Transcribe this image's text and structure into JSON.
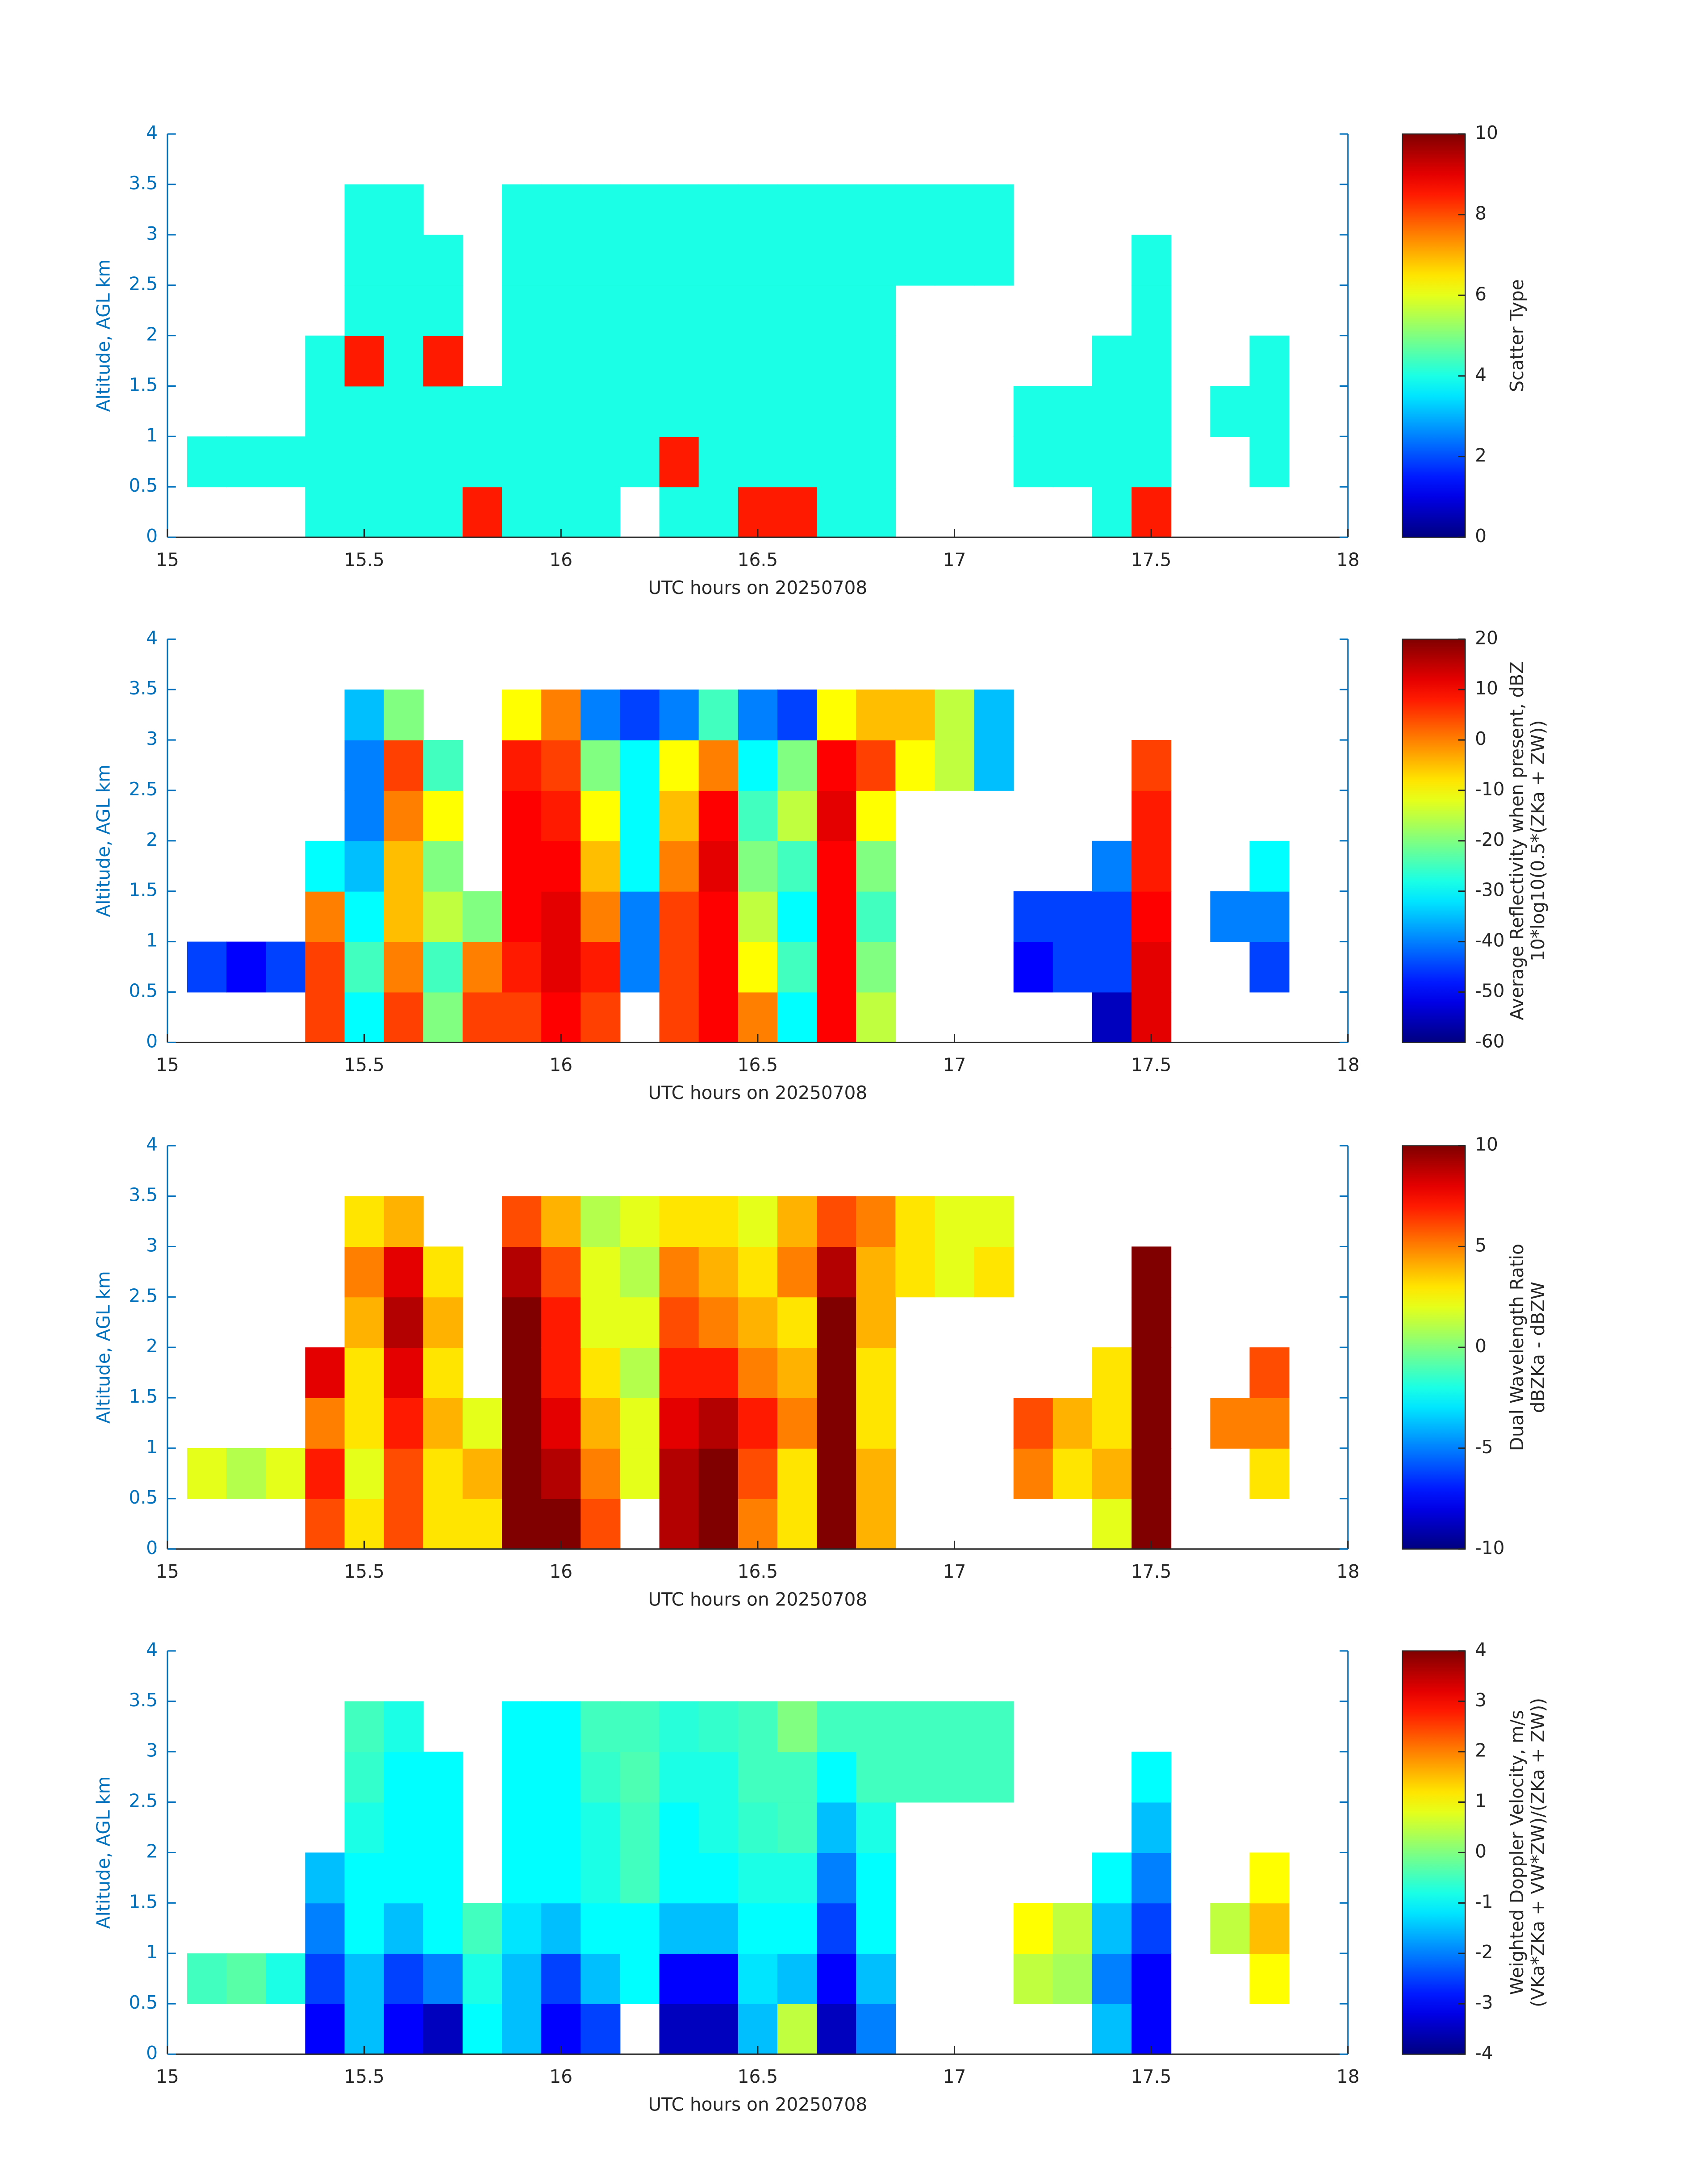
{
  "chart_data": [
    {
      "type": "heatmap",
      "colormap": "jet",
      "xlabel": "UTC hours on 20250708",
      "ylabel": "Altitude, AGL km",
      "colorbar_label": [
        "Scatter Type"
      ],
      "xlim": [
        15,
        18
      ],
      "ylim": [
        0,
        4
      ],
      "xticks": [
        15,
        15.5,
        16,
        16.5,
        17,
        17.5,
        18
      ],
      "yticks": [
        0,
        0.5,
        1,
        1.5,
        2,
        2.5,
        3,
        3.5,
        4
      ],
      "clim": [
        0,
        10
      ],
      "cticks": [
        0,
        2,
        4,
        6,
        8,
        10
      ],
      "x": [
        15.1,
        15.2,
        15.3,
        15.4,
        15.5,
        15.6,
        15.7,
        15.8,
        15.9,
        16.0,
        16.1,
        16.2,
        16.3,
        16.4,
        16.5,
        16.6,
        16.7,
        16.8,
        16.9,
        17.0,
        17.1,
        17.2,
        17.3,
        17.4,
        17.5,
        17.6,
        17.7,
        17.8,
        17.9
      ],
      "y": [
        0.25,
        0.75,
        1.25,
        1.75,
        2.25,
        2.75,
        3.25
      ],
      "z": [
        [
          null,
          4,
          null,
          null,
          null,
          null,
          null
        ],
        [
          null,
          4,
          null,
          null,
          null,
          null,
          null
        ],
        [
          null,
          4,
          null,
          null,
          null,
          null,
          null
        ],
        [
          4,
          4,
          4,
          4,
          null,
          null,
          null
        ],
        [
          4,
          4,
          4,
          8.5,
          4,
          4,
          4
        ],
        [
          4,
          4,
          4,
          4,
          4,
          4,
          4
        ],
        [
          4,
          4,
          4,
          8.5,
          4,
          4,
          null
        ],
        [
          8.5,
          4,
          4,
          null,
          null,
          null,
          null
        ],
        [
          4,
          4,
          4,
          4,
          4,
          4,
          4
        ],
        [
          4,
          4,
          4,
          4,
          4,
          4,
          4
        ],
        [
          4,
          4,
          4,
          4,
          4,
          4,
          4
        ],
        [
          null,
          4,
          4,
          4,
          4,
          4,
          4
        ],
        [
          4,
          8.5,
          4,
          4,
          4,
          4,
          4
        ],
        [
          4,
          4,
          4,
          4,
          4,
          4,
          4
        ],
        [
          8.5,
          4,
          4,
          4,
          4,
          4,
          4
        ],
        [
          8.5,
          4,
          4,
          4,
          4,
          4,
          4
        ],
        [
          4,
          4,
          4,
          4,
          4,
          4,
          4
        ],
        [
          4,
          4,
          4,
          4,
          4,
          4,
          4
        ],
        [
          null,
          null,
          null,
          null,
          null,
          4,
          4
        ],
        [
          null,
          null,
          null,
          null,
          null,
          4,
          4
        ],
        [
          null,
          null,
          null,
          null,
          null,
          4,
          4
        ],
        [
          null,
          4,
          4,
          null,
          null,
          null,
          null
        ],
        [
          null,
          4,
          4,
          null,
          null,
          null,
          null
        ],
        [
          4,
          4,
          4,
          4,
          null,
          null,
          null
        ],
        [
          8.5,
          4,
          4,
          4,
          4,
          4,
          null
        ],
        [
          null,
          null,
          null,
          null,
          null,
          null,
          null
        ],
        [
          null,
          null,
          4,
          null,
          null,
          null,
          null
        ],
        [
          null,
          4,
          4,
          4,
          null,
          null,
          null
        ],
        [
          null,
          null,
          null,
          null,
          null,
          null,
          null
        ]
      ]
    },
    {
      "type": "heatmap",
      "colormap": "jet",
      "xlabel": "UTC hours on 20250708",
      "ylabel": "Altitude, AGL km",
      "colorbar_label": [
        "Average Reflectivity when present, dBZ",
        "10*log10(0.5*(ZKa + ZW))"
      ],
      "xlim": [
        15,
        18
      ],
      "ylim": [
        0,
        4
      ],
      "xticks": [
        15,
        15.5,
        16,
        16.5,
        17,
        17.5,
        18
      ],
      "yticks": [
        0,
        0.5,
        1,
        1.5,
        2,
        2.5,
        3,
        3.5,
        4
      ],
      "clim": [
        -60,
        20
      ],
      "cticks": [
        -60,
        -50,
        -40,
        -30,
        -20,
        -10,
        0,
        10,
        20
      ],
      "x": [
        15.1,
        15.2,
        15.3,
        15.4,
        15.5,
        15.6,
        15.7,
        15.8,
        15.9,
        16.0,
        16.1,
        16.2,
        16.3,
        16.4,
        16.5,
        16.6,
        16.7,
        16.8,
        16.9,
        17.0,
        17.1,
        17.2,
        17.3,
        17.4,
        17.5,
        17.6,
        17.7,
        17.8,
        17.9
      ],
      "y": [
        0.25,
        0.75,
        1.25,
        1.75,
        2.25,
        2.75,
        3.25
      ],
      "z": [
        [
          null,
          -45,
          null,
          null,
          null,
          null,
          null
        ],
        [
          null,
          -50,
          null,
          null,
          null,
          null,
          null
        ],
        [
          null,
          -45,
          null,
          null,
          null,
          null,
          null
        ],
        [
          5,
          5,
          0,
          -30,
          null,
          null,
          null
        ],
        [
          -30,
          -25,
          -30,
          -35,
          -40,
          -40,
          -35
        ],
        [
          5,
          0,
          -5,
          -5,
          0,
          5,
          -20
        ],
        [
          -20,
          -25,
          -15,
          -20,
          -10,
          -25,
          null
        ],
        [
          5,
          0,
          -20,
          null,
          null,
          null,
          null
        ],
        [
          5,
          8,
          10,
          10,
          10,
          8,
          -10
        ],
        [
          10,
          12,
          12,
          10,
          8,
          5,
          0
        ],
        [
          5,
          8,
          0,
          -5,
          -10,
          -20,
          -40
        ],
        [
          null,
          -40,
          -40,
          -30,
          -30,
          -30,
          -45
        ],
        [
          5,
          5,
          5,
          0,
          -5,
          -10,
          -40
        ],
        [
          10,
          10,
          10,
          12,
          10,
          0,
          -25
        ],
        [
          0,
          -10,
          -15,
          -20,
          -25,
          -30,
          -40
        ],
        [
          -30,
          -25,
          -30,
          -25,
          -15,
          -20,
          -45
        ],
        [
          10,
          10,
          10,
          10,
          12,
          10,
          -10
        ],
        [
          -15,
          -20,
          -25,
          -20,
          -10,
          5,
          -5
        ],
        [
          null,
          null,
          null,
          null,
          null,
          -10,
          -5
        ],
        [
          null,
          null,
          null,
          null,
          null,
          -15,
          -15
        ],
        [
          null,
          null,
          null,
          null,
          null,
          -35,
          -35
        ],
        [
          null,
          -50,
          -45,
          null,
          null,
          null,
          null
        ],
        [
          null,
          -45,
          -45,
          null,
          null,
          null,
          null
        ],
        [
          -55,
          -45,
          -45,
          -40,
          null,
          null,
          null
        ],
        [
          12,
          12,
          10,
          8,
          8,
          5,
          null
        ],
        [
          null,
          null,
          null,
          null,
          null,
          null,
          null
        ],
        [
          null,
          null,
          -40,
          null,
          null,
          null,
          null
        ],
        [
          null,
          -45,
          -40,
          -30,
          null,
          null,
          null
        ],
        [
          null,
          null,
          null,
          null,
          null,
          null,
          null
        ]
      ]
    },
    {
      "type": "heatmap",
      "colormap": "jet",
      "xlabel": "UTC hours on 20250708",
      "ylabel": "Altitude, AGL km",
      "colorbar_label": [
        "Dual Wavelength Ratio",
        "dBZKa - dBZW"
      ],
      "xlim": [
        15,
        18
      ],
      "ylim": [
        0,
        4
      ],
      "xticks": [
        15,
        15.5,
        16,
        16.5,
        17,
        17.5,
        18
      ],
      "yticks": [
        0,
        0.5,
        1,
        1.5,
        2,
        2.5,
        3,
        3.5,
        4
      ],
      "clim": [
        -10,
        10
      ],
      "cticks": [
        -10,
        -5,
        0,
        5,
        10
      ],
      "x": [
        15.1,
        15.2,
        15.3,
        15.4,
        15.5,
        15.6,
        15.7,
        15.8,
        15.9,
        16.0,
        16.1,
        16.2,
        16.3,
        16.4,
        16.5,
        16.6,
        16.7,
        16.8,
        16.9,
        17.0,
        17.1,
        17.2,
        17.3,
        17.4,
        17.5,
        17.6,
        17.7,
        17.8,
        17.9
      ],
      "y": [
        0.25,
        0.75,
        1.25,
        1.75,
        2.25,
        2.75,
        3.25
      ],
      "z": [
        [
          null,
          2,
          null,
          null,
          null,
          null,
          null
        ],
        [
          null,
          1,
          null,
          null,
          null,
          null,
          null
        ],
        [
          null,
          2,
          null,
          null,
          null,
          null,
          null
        ],
        [
          6,
          7,
          5,
          8,
          null,
          null,
          null
        ],
        [
          3,
          2,
          3,
          3,
          4,
          5,
          3
        ],
        [
          6,
          6,
          7,
          8,
          9,
          8,
          4
        ],
        [
          3,
          3,
          4,
          3,
          4,
          3,
          null
        ],
        [
          3,
          4,
          2,
          null,
          null,
          null,
          null
        ],
        [
          10,
          10,
          10,
          10,
          10,
          9,
          6
        ],
        [
          10,
          9,
          8,
          7,
          7,
          6,
          4
        ],
        [
          6,
          5,
          4,
          3,
          2,
          2,
          1
        ],
        [
          null,
          2,
          2,
          1,
          2,
          1,
          2
        ],
        [
          9,
          9,
          8,
          7,
          6,
          5,
          3
        ],
        [
          10,
          10,
          9,
          7,
          5,
          4,
          3
        ],
        [
          5,
          6,
          7,
          5,
          4,
          3,
          2
        ],
        [
          3,
          3,
          5,
          4,
          3,
          5,
          4
        ],
        [
          10,
          10,
          10,
          10,
          10,
          9,
          6
        ],
        [
          4,
          4,
          3,
          3,
          4,
          4,
          5
        ],
        [
          null,
          null,
          null,
          null,
          null,
          3,
          3
        ],
        [
          null,
          null,
          null,
          null,
          null,
          2,
          2
        ],
        [
          null,
          null,
          null,
          null,
          null,
          3,
          2
        ],
        [
          null,
          5,
          6,
          null,
          null,
          null,
          null
        ],
        [
          null,
          3,
          4,
          null,
          null,
          null,
          null
        ],
        [
          2,
          4,
          3,
          3,
          null,
          null,
          null
        ],
        [
          10,
          10,
          10,
          10,
          10,
          10,
          null
        ],
        [
          null,
          null,
          null,
          null,
          null,
          null,
          null
        ],
        [
          null,
          null,
          5,
          null,
          null,
          null,
          null
        ],
        [
          null,
          3,
          5,
          6,
          null,
          null,
          null
        ],
        [
          null,
          null,
          null,
          null,
          null,
          null,
          null
        ]
      ]
    },
    {
      "type": "heatmap",
      "colormap": "jet",
      "xlabel": "UTC hours on 20250708",
      "ylabel": "Altitude, AGL km",
      "colorbar_label": [
        "Weighted Doppler Velocity, m/s",
        "(VKa*ZKa + VW*ZW)/(ZKa + ZW))"
      ],
      "xlim": [
        15,
        18
      ],
      "ylim": [
        0,
        4
      ],
      "xticks": [
        15,
        15.5,
        16,
        16.5,
        17,
        17.5,
        18
      ],
      "yticks": [
        0,
        0.5,
        1,
        1.5,
        2,
        2.5,
        3,
        3.5,
        4
      ],
      "clim": [
        -4,
        4
      ],
      "cticks": [
        -4,
        -3,
        -2,
        -1,
        0,
        1,
        2,
        3,
        4
      ],
      "x": [
        15.1,
        15.2,
        15.3,
        15.4,
        15.5,
        15.6,
        15.7,
        15.8,
        15.9,
        16.0,
        16.1,
        16.2,
        16.3,
        16.4,
        16.5,
        16.6,
        16.7,
        16.8,
        16.9,
        17.0,
        17.1,
        17.2,
        17.3,
        17.4,
        17.5,
        17.6,
        17.7,
        17.8,
        17.9
      ],
      "y": [
        0.25,
        0.75,
        1.25,
        1.75,
        2.25,
        2.75,
        3.25
      ],
      "z": [
        [
          null,
          -0.5,
          null,
          null,
          null,
          null,
          null
        ],
        [
          null,
          -0.3,
          null,
          null,
          null,
          null,
          null
        ],
        [
          null,
          -0.8,
          null,
          null,
          null,
          null,
          null
        ],
        [
          -3,
          -2.5,
          -2,
          -1.5,
          null,
          null,
          null
        ],
        [
          -1.5,
          -1.5,
          -1,
          -1,
          -0.8,
          -0.6,
          -0.5
        ],
        [
          -3,
          -2.5,
          -1.5,
          -1,
          -1,
          -1,
          -0.8
        ],
        [
          -3.5,
          -2,
          -1,
          -1,
          -1,
          -1,
          null
        ],
        [
          -1,
          -0.8,
          -0.5,
          null,
          null,
          null,
          null
        ],
        [
          -1.5,
          -1.5,
          -1.2,
          -1,
          -1,
          -1,
          -1
        ],
        [
          -3,
          -2.5,
          -1.5,
          -1,
          -1,
          -1,
          -1
        ],
        [
          -2.5,
          -1.5,
          -1,
          -0.8,
          -0.8,
          -0.6,
          -0.5
        ],
        [
          null,
          -1,
          -1,
          -0.5,
          -0.5,
          -0.4,
          -0.5
        ],
        [
          -3.5,
          -3,
          -1.5,
          -1,
          -1,
          -0.8,
          -0.7
        ],
        [
          -3.5,
          -3,
          -1.5,
          -1,
          -0.8,
          -0.8,
          -0.6
        ],
        [
          -1.5,
          -1.2,
          -1,
          -0.8,
          -0.6,
          -0.5,
          -0.5
        ],
        [
          0.5,
          -1.5,
          -1,
          -0.8,
          -0.5,
          -0.5,
          0
        ],
        [
          -3.5,
          -3,
          -2.5,
          -2,
          -1.5,
          -1,
          -0.5
        ],
        [
          -2,
          -1.5,
          -1,
          -1,
          -0.8,
          -0.5,
          -0.5
        ],
        [
          null,
          null,
          null,
          null,
          null,
          -0.5,
          -0.5
        ],
        [
          null,
          null,
          null,
          null,
          null,
          -0.5,
          -0.5
        ],
        [
          null,
          null,
          null,
          null,
          null,
          -0.5,
          -0.5
        ],
        [
          null,
          0.5,
          1,
          null,
          null,
          null,
          null
        ],
        [
          null,
          0.3,
          0.5,
          null,
          null,
          null,
          null
        ],
        [
          -1.5,
          -2,
          -1.5,
          -1,
          null,
          null,
          null
        ],
        [
          -3,
          -3,
          -2.5,
          -2,
          -1.5,
          -1,
          null
        ],
        [
          null,
          null,
          null,
          null,
          null,
          null,
          null
        ],
        [
          null,
          null,
          0.5,
          null,
          null,
          null,
          null
        ],
        [
          null,
          1,
          1.5,
          1,
          null,
          null,
          null
        ],
        [
          null,
          null,
          null,
          null,
          null,
          null,
          null
        ]
      ]
    }
  ]
}
